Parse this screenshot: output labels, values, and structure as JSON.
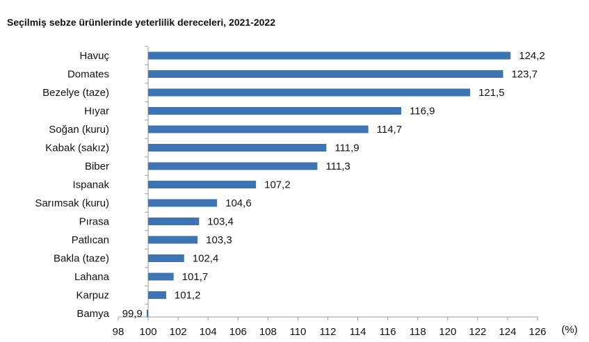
{
  "title": "Seçilmiş sebze ürünlerinde yeterlilik dereceleri, 2021-2022",
  "chart_data": {
    "type": "bar",
    "orientation": "horizontal",
    "categories": [
      "Havuç",
      "Domates",
      "Bezelye (taze)",
      "Hıyar",
      "Soğan (kuru)",
      "Kabak (sakız)",
      "Biber",
      "Ispanak",
      "Sarımsak (kuru)",
      "Pırasa",
      "Patlıcan",
      "Bakla (taze)",
      "Lahana",
      "Karpuz",
      "Bamya"
    ],
    "values": [
      124.2,
      123.7,
      121.5,
      116.9,
      114.7,
      111.9,
      111.3,
      107.2,
      104.6,
      103.4,
      103.3,
      102.4,
      101.7,
      101.2,
      99.9
    ],
    "value_labels": [
      "124,2",
      "123,7",
      "121,5",
      "116,9",
      "114,7",
      "111,9",
      "111,3",
      "107,2",
      "104,6",
      "103,4",
      "103,3",
      "102,4",
      "101,7",
      "101,2",
      "99,9"
    ],
    "xlim": [
      98,
      126
    ],
    "xticks": [
      98,
      100,
      102,
      104,
      106,
      108,
      110,
      112,
      114,
      116,
      118,
      120,
      122,
      124,
      126
    ],
    "xunit": "(%)",
    "bar_baseline": 100,
    "grid": false,
    "colors": {
      "bar": "#3f74b2",
      "axis": "#9a9a9a"
    }
  }
}
